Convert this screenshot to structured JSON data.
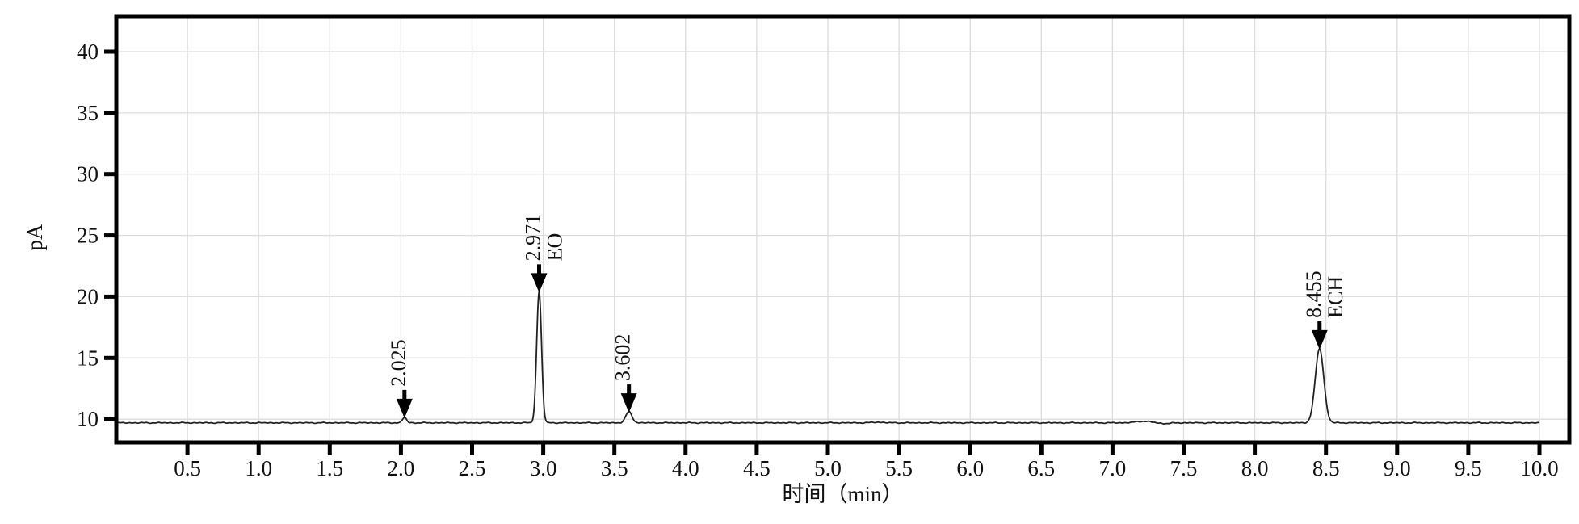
{
  "figure": {
    "kind": "gas-chromatogram",
    "background": "#ffffff"
  },
  "chart_data": {
    "type": "line",
    "title": "",
    "xlabel": "时间（min）",
    "ylabel": "pA",
    "xlim": [
      0,
      10.21
    ],
    "ylim": [
      8.1,
      42.9
    ],
    "xticks": [
      0.5,
      1.0,
      1.5,
      2.0,
      2.5,
      3.0,
      3.5,
      4.0,
      4.5,
      5.0,
      5.5,
      6.0,
      6.5,
      7.0,
      7.5,
      8.0,
      8.5,
      9.0,
      9.5,
      10.0
    ],
    "yticks": [
      10,
      15,
      20,
      25,
      30,
      35,
      40
    ],
    "grid": true,
    "grid_color": "#dcdcdc",
    "axis_color": "#000000",
    "trace_color": "#222222",
    "marker_color": "#000000",
    "baseline_pA": 9.7,
    "trace_start_min": 0.0,
    "trace_end_min": 10.0,
    "peaks": [
      {
        "rt_min": 2.025,
        "rt_label": "2.025",
        "compound": "",
        "apex_pA": 10.15,
        "sigma_min": 0.014
      },
      {
        "rt_min": 2.971,
        "rt_label": "2.971",
        "compound": "EO",
        "apex_pA": 20.4,
        "sigma_min": 0.017
      },
      {
        "rt_min": 3.602,
        "rt_label": "3.602",
        "compound": "",
        "apex_pA": 10.6,
        "sigma_min": 0.022
      },
      {
        "rt_min": 8.455,
        "rt_label": "8.455",
        "compound": "ECH",
        "apex_pA": 15.75,
        "sigma_min": 0.03
      }
    ],
    "baseline_disturbances": [
      {
        "t_min": 7.22,
        "amp_pA": 0.13,
        "sigma_min": 0.055
      },
      {
        "t_min": 7.36,
        "amp_pA": -0.06,
        "sigma_min": 0.045
      },
      {
        "t_min": 5.35,
        "amp_pA": 0.05,
        "sigma_min": 0.04
      }
    ]
  }
}
